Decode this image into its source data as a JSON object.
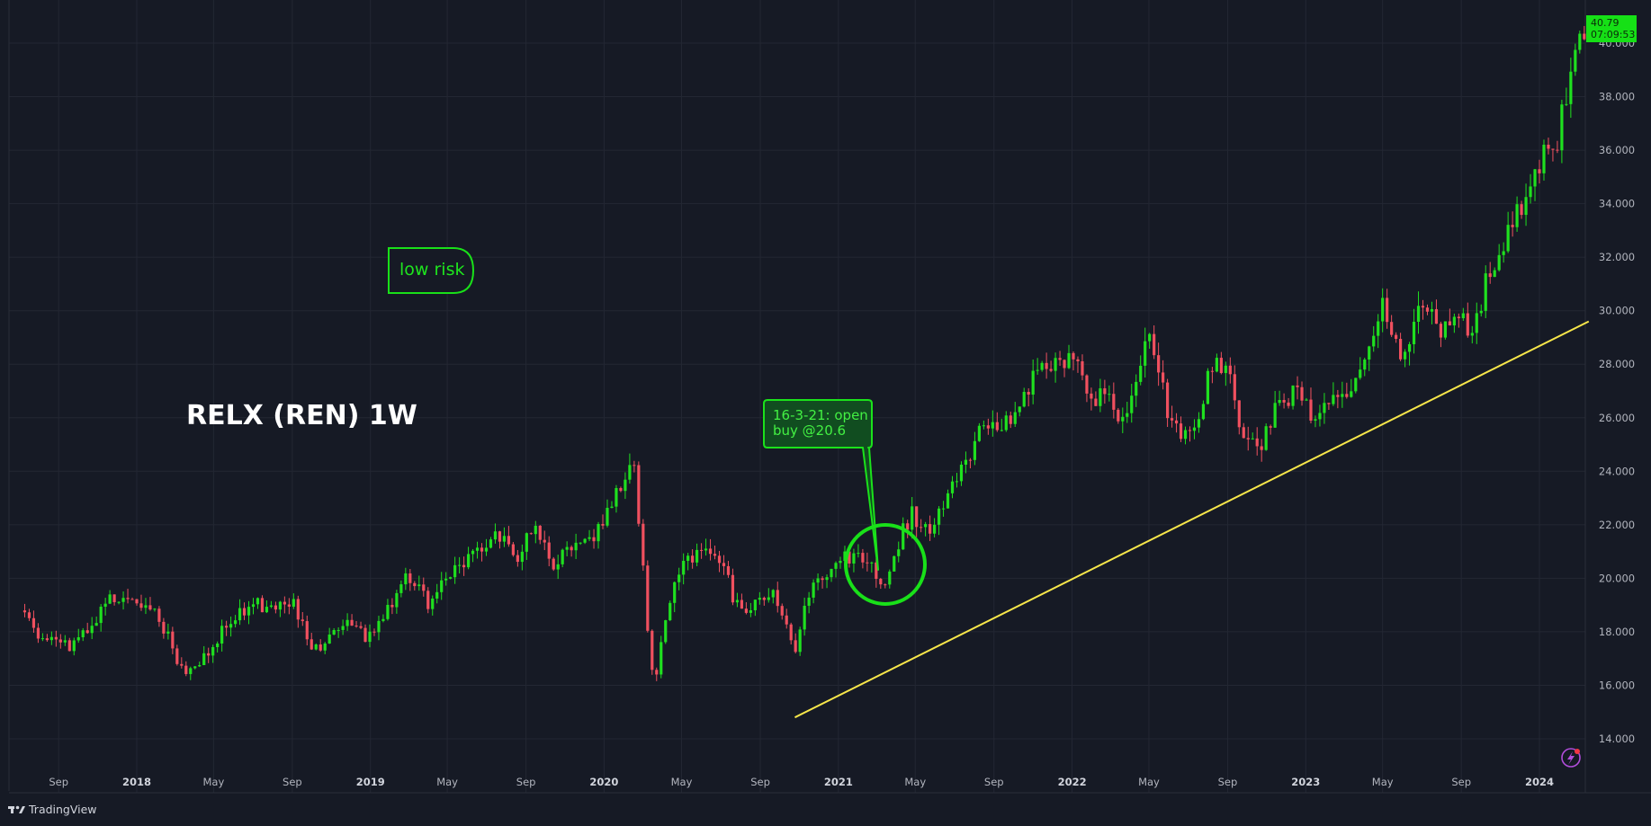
{
  "chart_data": {
    "type": "candlestick",
    "title": "RELX (REN) 1W",
    "ylim": [
      13.0,
      42.0
    ],
    "y_ticks": [
      "14.000",
      "16.000",
      "18.000",
      "20.000",
      "22.000",
      "24.000",
      "26.000",
      "28.000",
      "30.000",
      "32.000",
      "34.000",
      "36.000",
      "38.000",
      "40.000"
    ],
    "x_ticks": [
      {
        "label": "Sep",
        "date": "2017-09-01",
        "year": false
      },
      {
        "label": "2018",
        "date": "2018-01-01",
        "year": true
      },
      {
        "label": "May",
        "date": "2018-05-01",
        "year": false
      },
      {
        "label": "Sep",
        "date": "2018-09-01",
        "year": false
      },
      {
        "label": "2019",
        "date": "2019-01-01",
        "year": true
      },
      {
        "label": "May",
        "date": "2019-05-01",
        "year": false
      },
      {
        "label": "Sep",
        "date": "2019-09-01",
        "year": false
      },
      {
        "label": "2020",
        "date": "2020-01-01",
        "year": true
      },
      {
        "label": "May",
        "date": "2020-05-01",
        "year": false
      },
      {
        "label": "Sep",
        "date": "2020-09-01",
        "year": false
      },
      {
        "label": "2021",
        "date": "2021-01-01",
        "year": true
      },
      {
        "label": "May",
        "date": "2021-05-01",
        "year": false
      },
      {
        "label": "Sep",
        "date": "2021-09-01",
        "year": false
      },
      {
        "label": "2022",
        "date": "2022-01-01",
        "year": true
      },
      {
        "label": "May",
        "date": "2022-05-01",
        "year": false
      },
      {
        "label": "Sep",
        "date": "2022-09-01",
        "year": false
      },
      {
        "label": "2023",
        "date": "2023-01-01",
        "year": true
      },
      {
        "label": "May",
        "date": "2023-05-01",
        "year": false
      },
      {
        "label": "Sep",
        "date": "2023-09-01",
        "year": false
      },
      {
        "label": "2024",
        "date": "2024-01-01",
        "year": true
      }
    ],
    "price_anchors": [
      [
        "2017-07-10",
        18.8
      ],
      [
        "2017-08-10",
        17.6
      ],
      [
        "2017-09-20",
        17.4
      ],
      [
        "2017-10-20",
        18.3
      ],
      [
        "2017-11-25",
        19.3
      ],
      [
        "2017-12-20",
        19.4
      ],
      [
        "2018-01-20",
        19.0
      ],
      [
        "2018-02-20",
        17.8
      ],
      [
        "2018-03-15",
        16.4
      ],
      [
        "2018-04-05",
        16.5
      ],
      [
        "2018-05-01",
        17.6
      ],
      [
        "2018-06-01",
        18.6
      ],
      [
        "2018-07-01",
        19.1
      ],
      [
        "2018-08-01",
        18.7
      ],
      [
        "2018-09-01",
        19.2
      ],
      [
        "2018-10-01",
        17.2
      ],
      [
        "2018-11-01",
        17.8
      ],
      [
        "2018-12-01",
        18.4
      ],
      [
        "2018-12-28",
        17.7
      ],
      [
        "2019-02-01",
        19.0
      ],
      [
        "2019-03-01",
        20.2
      ],
      [
        "2019-04-01",
        19.0
      ],
      [
        "2019-05-01",
        20.0
      ],
      [
        "2019-06-10",
        21.0
      ],
      [
        "2019-07-20",
        21.7
      ],
      [
        "2019-08-20",
        20.7
      ],
      [
        "2019-09-10",
        22.0
      ],
      [
        "2019-10-15",
        20.3
      ],
      [
        "2019-11-15",
        21.4
      ],
      [
        "2019-12-15",
        21.6
      ],
      [
        "2020-01-15",
        22.8
      ],
      [
        "2020-02-15",
        24.8
      ],
      [
        "2020-02-25",
        22.0
      ],
      [
        "2020-03-10",
        18.0
      ],
      [
        "2020-03-20",
        16.0
      ],
      [
        "2020-04-05",
        18.5
      ],
      [
        "2020-05-01",
        20.5
      ],
      [
        "2020-06-01",
        21.2
      ],
      [
        "2020-07-01",
        20.6
      ],
      [
        "2020-08-01",
        18.6
      ],
      [
        "2020-09-01",
        19.5
      ],
      [
        "2020-10-01",
        19.2
      ],
      [
        "2020-10-25",
        17.2
      ],
      [
        "2020-11-15",
        19.5
      ],
      [
        "2020-12-15",
        20.0
      ],
      [
        "2021-01-15",
        20.8
      ],
      [
        "2021-02-15",
        20.6
      ],
      [
        "2021-03-16",
        19.8
      ],
      [
        "2021-04-05",
        21.4
      ],
      [
        "2021-04-25",
        22.4
      ],
      [
        "2021-05-20",
        21.8
      ],
      [
        "2021-06-10",
        22.5
      ],
      [
        "2021-07-15",
        24.2
      ],
      [
        "2021-08-15",
        25.6
      ],
      [
        "2021-09-15",
        25.5
      ],
      [
        "2021-10-15",
        26.8
      ],
      [
        "2021-11-15",
        27.8
      ],
      [
        "2021-12-15",
        27.9
      ],
      [
        "2022-01-05",
        28.2
      ],
      [
        "2022-01-25",
        26.5
      ],
      [
        "2022-02-25",
        26.9
      ],
      [
        "2022-03-15",
        25.8
      ],
      [
        "2022-04-15",
        27.5
      ],
      [
        "2022-05-01",
        29.0
      ],
      [
        "2022-06-01",
        26.2
      ],
      [
        "2022-07-01",
        25.2
      ],
      [
        "2022-07-20",
        26.3
      ],
      [
        "2022-08-10",
        28.3
      ],
      [
        "2022-09-01",
        27.8
      ],
      [
        "2022-09-25",
        25.4
      ],
      [
        "2022-10-20",
        24.8
      ],
      [
        "2022-11-15",
        26.4
      ],
      [
        "2022-12-15",
        26.9
      ],
      [
        "2023-01-15",
        26.0
      ],
      [
        "2023-02-15",
        26.6
      ],
      [
        "2023-03-15",
        27.3
      ],
      [
        "2023-04-15",
        29.0
      ],
      [
        "2023-05-01",
        30.1
      ],
      [
        "2023-06-01",
        28.3
      ],
      [
        "2023-07-01",
        30.6
      ],
      [
        "2023-08-01",
        29.2
      ],
      [
        "2023-08-25",
        29.9
      ],
      [
        "2023-09-20",
        29.2
      ],
      [
        "2023-10-15",
        31.6
      ],
      [
        "2023-11-05",
        32.4
      ],
      [
        "2023-12-01",
        33.8
      ],
      [
        "2023-12-28",
        35.6
      ],
      [
        "2024-01-25",
        35.8
      ],
      [
        "2024-02-15",
        38.6
      ],
      [
        "2024-03-10",
        40.2
      ],
      [
        "2024-03-18",
        40.79
      ]
    ],
    "trendline": {
      "color": "#f7e64a",
      "start": {
        "date": "2020-10-25",
        "value": 14.8
      },
      "end": {
        "date": "2024-03-18",
        "value": 29.6
      }
    },
    "last_price": "40.79",
    "countdown": "07:09:53",
    "colors": {
      "up": "#1fe01f",
      "down": "#f0505f",
      "background": "#161a25",
      "accent": "#16e016"
    }
  },
  "annotations": {
    "low_risk": "low risk",
    "buy_note_line1": "16-3-21: open",
    "buy_note_line2": "buy @20.6"
  },
  "footer": {
    "brand": "TradingView"
  }
}
